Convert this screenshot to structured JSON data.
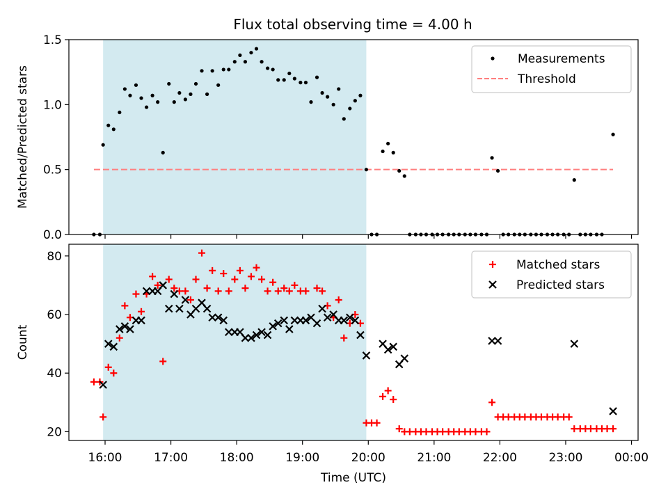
{
  "title": "Flux total observing time = 4.00 h",
  "x_axis": {
    "label": "Time (UTC)",
    "ticks": [
      "16:00",
      "17:00",
      "18:00",
      "19:00",
      "20:00",
      "21:00",
      "22:00",
      "23:00",
      "00:00"
    ]
  },
  "colors": {
    "observing_window": "#d3eaf0",
    "measurements": "#000000",
    "threshold": "#ff7f7f",
    "matched": "#ff0000",
    "predicted": "#000000"
  },
  "chart_data": [
    {
      "type": "scatter",
      "name": "top",
      "ylabel": "Matched/Predicted stars",
      "x_unit": "hours UTC (24 = 00:00)",
      "xlim": [
        15.45,
        24.1
      ],
      "ylim": [
        0,
        1.5
      ],
      "yticks": [
        "0.0",
        "0.5",
        "1.0",
        "1.5"
      ],
      "shaded_window": [
        15.97,
        19.97
      ],
      "legend": {
        "position": "top-right",
        "entries": [
          "Measurements",
          "Threshold"
        ]
      },
      "threshold": {
        "name": "Threshold",
        "y": 0.5,
        "x": [
          15.83,
          23.72
        ]
      },
      "series": [
        {
          "name": "Measurements",
          "marker": "dot",
          "points": [
            [
              15.83,
              0
            ],
            [
              15.92,
              0
            ],
            [
              15.97,
              0.69
            ],
            [
              16.05,
              0.84
            ],
            [
              16.13,
              0.81
            ],
            [
              16.22,
              0.94
            ],
            [
              16.3,
              1.12
            ],
            [
              16.38,
              1.07
            ],
            [
              16.47,
              1.15
            ],
            [
              16.55,
              1.05
            ],
            [
              16.63,
              0.98
            ],
            [
              16.72,
              1.07
            ],
            [
              16.8,
              1.02
            ],
            [
              16.88,
              0.63
            ],
            [
              16.97,
              1.16
            ],
            [
              17.05,
              1.02
            ],
            [
              17.13,
              1.09
            ],
            [
              17.22,
              1.04
            ],
            [
              17.3,
              1.08
            ],
            [
              17.38,
              1.16
            ],
            [
              17.47,
              1.26
            ],
            [
              17.55,
              1.08
            ],
            [
              17.63,
              1.26
            ],
            [
              17.72,
              1.15
            ],
            [
              17.8,
              1.27
            ],
            [
              17.88,
              1.27
            ],
            [
              17.97,
              1.33
            ],
            [
              18.05,
              1.38
            ],
            [
              18.13,
              1.33
            ],
            [
              18.22,
              1.4
            ],
            [
              18.3,
              1.43
            ],
            [
              18.38,
              1.33
            ],
            [
              18.47,
              1.28
            ],
            [
              18.55,
              1.27
            ],
            [
              18.63,
              1.19
            ],
            [
              18.72,
              1.19
            ],
            [
              18.8,
              1.24
            ],
            [
              18.88,
              1.2
            ],
            [
              18.97,
              1.17
            ],
            [
              19.05,
              1.17
            ],
            [
              19.13,
              1.02
            ],
            [
              19.22,
              1.21
            ],
            [
              19.3,
              1.09
            ],
            [
              19.38,
              1.06
            ],
            [
              19.47,
              1.0
            ],
            [
              19.55,
              1.12
            ],
            [
              19.63,
              0.89
            ],
            [
              19.72,
              0.97
            ],
            [
              19.8,
              1.03
            ],
            [
              19.88,
              1.07
            ],
            [
              19.97,
              0.5
            ],
            [
              20.05,
              0
            ],
            [
              20.13,
              0
            ],
            [
              20.22,
              0.64
            ],
            [
              20.3,
              0.7
            ],
            [
              20.38,
              0.63
            ],
            [
              20.47,
              0.49
            ],
            [
              20.55,
              0.45
            ],
            [
              20.63,
              0
            ],
            [
              20.72,
              0
            ],
            [
              20.8,
              0
            ],
            [
              20.88,
              0
            ],
            [
              20.97,
              0
            ],
            [
              21.05,
              0
            ],
            [
              21.13,
              0
            ],
            [
              21.22,
              0
            ],
            [
              21.3,
              0
            ],
            [
              21.38,
              0
            ],
            [
              21.47,
              0
            ],
            [
              21.55,
              0
            ],
            [
              21.63,
              0
            ],
            [
              21.72,
              0
            ],
            [
              21.8,
              0
            ],
            [
              21.88,
              0.59
            ],
            [
              21.97,
              0.49
            ],
            [
              22.05,
              0
            ],
            [
              22.13,
              0
            ],
            [
              22.22,
              0
            ],
            [
              22.3,
              0
            ],
            [
              22.38,
              0
            ],
            [
              22.47,
              0
            ],
            [
              22.55,
              0
            ],
            [
              22.63,
              0
            ],
            [
              22.72,
              0
            ],
            [
              22.8,
              0
            ],
            [
              22.88,
              0
            ],
            [
              22.97,
              0
            ],
            [
              23.05,
              0
            ],
            [
              23.13,
              0.42
            ],
            [
              23.22,
              0
            ],
            [
              23.3,
              0
            ],
            [
              23.38,
              0
            ],
            [
              23.47,
              0
            ],
            [
              23.55,
              0
            ],
            [
              23.72,
              0.77
            ]
          ]
        }
      ]
    },
    {
      "type": "scatter",
      "name": "bottom",
      "ylabel": "Count",
      "x_unit": "hours UTC (24 = 00:00)",
      "xlim": [
        15.45,
        24.1
      ],
      "ylim": [
        17,
        84
      ],
      "yticks": [
        "20",
        "40",
        "60",
        "80"
      ],
      "shaded_window": [
        15.97,
        19.97
      ],
      "legend": {
        "position": "top-right",
        "entries": [
          "Matched stars",
          "Predicted stars"
        ]
      },
      "series": [
        {
          "name": "Matched stars",
          "marker": "plus",
          "points": [
            [
              15.83,
              37
            ],
            [
              15.92,
              37
            ],
            [
              15.97,
              25
            ],
            [
              16.05,
              42
            ],
            [
              16.13,
              40
            ],
            [
              16.22,
              52
            ],
            [
              16.3,
              63
            ],
            [
              16.38,
              59
            ],
            [
              16.47,
              67
            ],
            [
              16.55,
              61
            ],
            [
              16.63,
              67
            ],
            [
              16.72,
              73
            ],
            [
              16.8,
              70
            ],
            [
              16.88,
              44
            ],
            [
              16.97,
              72
            ],
            [
              17.05,
              69
            ],
            [
              17.13,
              68
            ],
            [
              17.22,
              68
            ],
            [
              17.3,
              65
            ],
            [
              17.38,
              72
            ],
            [
              17.47,
              81
            ],
            [
              17.55,
              69
            ],
            [
              17.63,
              75
            ],
            [
              17.72,
              68
            ],
            [
              17.8,
              74
            ],
            [
              17.88,
              68
            ],
            [
              17.97,
              72
            ],
            [
              18.05,
              75
            ],
            [
              18.13,
              69
            ],
            [
              18.22,
              73
            ],
            [
              18.3,
              76
            ],
            [
              18.38,
              72
            ],
            [
              18.47,
              68
            ],
            [
              18.55,
              71
            ],
            [
              18.63,
              68
            ],
            [
              18.72,
              69
            ],
            [
              18.8,
              68
            ],
            [
              18.88,
              70
            ],
            [
              18.97,
              68
            ],
            [
              19.05,
              68
            ],
            [
              19.22,
              69
            ],
            [
              19.3,
              68
            ],
            [
              19.38,
              63
            ],
            [
              19.47,
              59
            ],
            [
              19.55,
              65
            ],
            [
              19.63,
              52
            ],
            [
              19.72,
              57
            ],
            [
              19.8,
              60
            ],
            [
              19.88,
              57
            ],
            [
              19.97,
              23
            ],
            [
              20.05,
              23
            ],
            [
              20.13,
              23
            ],
            [
              20.22,
              32
            ],
            [
              20.3,
              34
            ],
            [
              20.38,
              31
            ],
            [
              20.47,
              21
            ],
            [
              20.55,
              20
            ],
            [
              20.63,
              20
            ],
            [
              20.72,
              20
            ],
            [
              20.8,
              20
            ],
            [
              20.88,
              20
            ],
            [
              20.97,
              20
            ],
            [
              21.05,
              20
            ],
            [
              21.13,
              20
            ],
            [
              21.22,
              20
            ],
            [
              21.3,
              20
            ],
            [
              21.38,
              20
            ],
            [
              21.47,
              20
            ],
            [
              21.55,
              20
            ],
            [
              21.63,
              20
            ],
            [
              21.72,
              20
            ],
            [
              21.8,
              20
            ],
            [
              21.88,
              30
            ],
            [
              21.97,
              25
            ],
            [
              22.05,
              25
            ],
            [
              22.13,
              25
            ],
            [
              22.22,
              25
            ],
            [
              22.3,
              25
            ],
            [
              22.38,
              25
            ],
            [
              22.47,
              25
            ],
            [
              22.55,
              25
            ],
            [
              22.63,
              25
            ],
            [
              22.72,
              25
            ],
            [
              22.8,
              25
            ],
            [
              22.88,
              25
            ],
            [
              22.97,
              25
            ],
            [
              23.05,
              25
            ],
            [
              23.13,
              21
            ],
            [
              23.22,
              21
            ],
            [
              23.3,
              21
            ],
            [
              23.38,
              21
            ],
            [
              23.47,
              21
            ],
            [
              23.55,
              21
            ],
            [
              23.63,
              21
            ],
            [
              23.72,
              21
            ]
          ]
        },
        {
          "name": "Predicted stars",
          "marker": "x",
          "points": [
            [
              15.97,
              36
            ],
            [
              16.05,
              50
            ],
            [
              16.13,
              49
            ],
            [
              16.22,
              55
            ],
            [
              16.3,
              56
            ],
            [
              16.38,
              55
            ],
            [
              16.47,
              58
            ],
            [
              16.55,
              58
            ],
            [
              16.63,
              68
            ],
            [
              16.72,
              68
            ],
            [
              16.8,
              68
            ],
            [
              16.88,
              70
            ],
            [
              16.97,
              62
            ],
            [
              17.05,
              67
            ],
            [
              17.13,
              62
            ],
            [
              17.22,
              65
            ],
            [
              17.3,
              60
            ],
            [
              17.38,
              62
            ],
            [
              17.47,
              64
            ],
            [
              17.55,
              62
            ],
            [
              17.63,
              59
            ],
            [
              17.72,
              59
            ],
            [
              17.8,
              58
            ],
            [
              17.88,
              54
            ],
            [
              17.97,
              54
            ],
            [
              18.05,
              54
            ],
            [
              18.13,
              52
            ],
            [
              18.22,
              52
            ],
            [
              18.3,
              53
            ],
            [
              18.38,
              54
            ],
            [
              18.47,
              53
            ],
            [
              18.55,
              56
            ],
            [
              18.63,
              57
            ],
            [
              18.72,
              58
            ],
            [
              18.8,
              55
            ],
            [
              18.88,
              58
            ],
            [
              18.97,
              58
            ],
            [
              19.05,
              58
            ],
            [
              19.13,
              59
            ],
            [
              19.22,
              57
            ],
            [
              19.3,
              62
            ],
            [
              19.38,
              59
            ],
            [
              19.47,
              60
            ],
            [
              19.55,
              58
            ],
            [
              19.63,
              58
            ],
            [
              19.72,
              59
            ],
            [
              19.8,
              58
            ],
            [
              19.88,
              53
            ],
            [
              19.97,
              46
            ],
            [
              20.22,
              50
            ],
            [
              20.3,
              48
            ],
            [
              20.38,
              49
            ],
            [
              20.47,
              43
            ],
            [
              20.55,
              45
            ],
            [
              21.88,
              51
            ],
            [
              21.97,
              51
            ],
            [
              23.13,
              50
            ],
            [
              23.72,
              27
            ]
          ]
        }
      ]
    }
  ]
}
